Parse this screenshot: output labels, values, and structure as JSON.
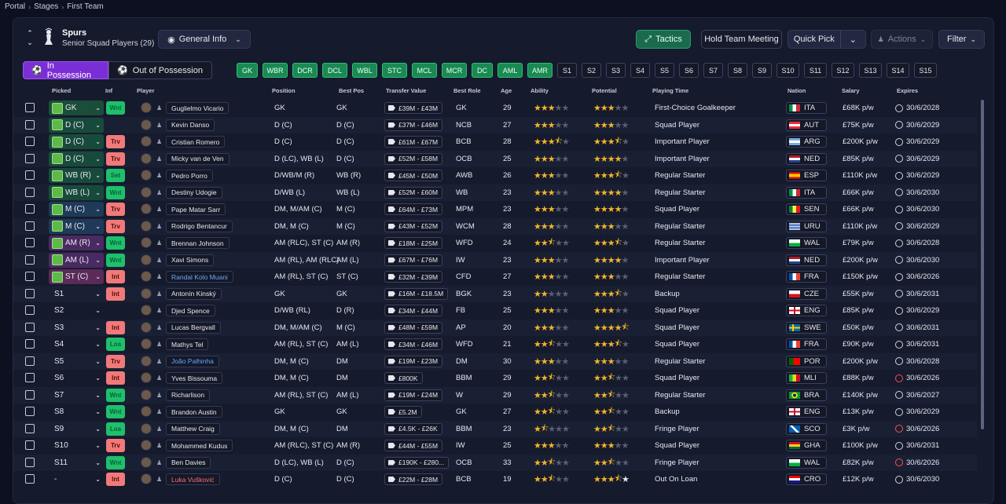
{
  "breadcrumb": [
    "Portal",
    "Stages",
    "First Team"
  ],
  "club": {
    "name": "Spurs",
    "subtitle": "Senior Squad Players (29)"
  },
  "view_select": "General Info",
  "toolbar": {
    "tactics": "Tactics",
    "hold_meeting": "Hold Team Meeting",
    "quick_pick": "Quick Pick",
    "actions": "Actions",
    "filter": "Filter"
  },
  "tabs": {
    "in_possession": "In Possession",
    "out_of_possession": "Out of Possession"
  },
  "chips": [
    "GK",
    "WBR",
    "DCR",
    "DCL",
    "WBL",
    "STC",
    "MCL",
    "MCR",
    "DC",
    "AML",
    "AMR",
    "S1",
    "S2",
    "S3",
    "S4",
    "S5",
    "S6",
    "S7",
    "S8",
    "S9",
    "S10",
    "S11",
    "S12",
    "S13",
    "S14",
    "S15"
  ],
  "chip_filled_count": 11,
  "headers": {
    "picked": "Picked",
    "inf": "Inf",
    "player": "Player",
    "position": "Position",
    "best_pos": "Best Pos",
    "transfer_value": "Transfer Value",
    "best_role": "Best Role",
    "age": "Age",
    "ability": "Ability",
    "potential": "Potential",
    "playing_time": "Playing Time",
    "nation": "Nation",
    "salary": "Salary",
    "expires": "Expires"
  },
  "colors": {
    "accent_purple": "#7c2ed6",
    "tactics_green": "#1a6b4e",
    "happy": "#1fbf6c",
    "unhappy": "#f07a7a",
    "star": "#f2b52a"
  },
  "players": [
    {
      "picked": "GK",
      "pk": "gk",
      "inf": "Wnt",
      "name": "Guglielmo Vicario",
      "pos": "GK",
      "best_pos": "GK",
      "tv": "£39M - £43M",
      "role": "GK",
      "age": "29",
      "ability": 3,
      "potential": 3,
      "pt": "First-Choice Goalkeeper",
      "nat": "ITA",
      "flag": "ita",
      "sal": "£68K p/w",
      "exp": "30/6/2028",
      "exp_red": false
    },
    {
      "picked": "D (C)",
      "pk": "def",
      "inf": "",
      "name": "Kevin Danso",
      "pos": "D (C)",
      "best_pos": "D (C)",
      "tv": "£37M - £46M",
      "role": "NCB",
      "age": "27",
      "ability": 3,
      "potential": 3,
      "pt": "Squad Player",
      "nat": "AUT",
      "flag": "aut",
      "sal": "£75K p/w",
      "exp": "30/6/2029",
      "exp_red": false
    },
    {
      "picked": "D (C)",
      "pk": "def",
      "inf": "Trv",
      "name": "Cristian Romero",
      "pos": "D (C)",
      "best_pos": "D (C)",
      "tv": "£61M - £67M",
      "role": "BCB",
      "age": "28",
      "ability": 3.5,
      "potential": 3.5,
      "pt": "Important Player",
      "nat": "ARG",
      "flag": "arg",
      "sal": "£200K p/w",
      "exp": "30/6/2029",
      "exp_red": false
    },
    {
      "picked": "D (C)",
      "pk": "def",
      "inf": "Trv",
      "name": "Micky van de Ven",
      "pos": "D (LC), WB (L)",
      "best_pos": "D (C)",
      "tv": "£52M - £58M",
      "role": "OCB",
      "age": "25",
      "ability": 3,
      "potential": 4,
      "pt": "Important Player",
      "nat": "NED",
      "flag": "ned",
      "sal": "£85K p/w",
      "exp": "30/6/2029",
      "exp_red": false
    },
    {
      "picked": "WB (R)",
      "pk": "def",
      "inf": "Set",
      "name": "Pedro Porro",
      "pos": "D/WB/M (R)",
      "best_pos": "WB (R)",
      "tv": "£45M - £50M",
      "role": "AWB",
      "age": "26",
      "ability": 3,
      "potential": 3.5,
      "pt": "Regular Starter",
      "nat": "ESP",
      "flag": "esp",
      "sal": "£110K p/w",
      "exp": "30/6/2029",
      "exp_red": false
    },
    {
      "picked": "WB (L)",
      "pk": "def",
      "inf": "Wnt",
      "name": "Destiny Udogie",
      "pos": "D/WB (L)",
      "best_pos": "WB (L)",
      "tv": "£52M - £60M",
      "role": "WB",
      "age": "23",
      "ability": 3,
      "potential": 4,
      "pt": "Regular Starter",
      "nat": "ITA",
      "flag": "ita",
      "sal": "£66K p/w",
      "exp": "30/6/2030",
      "exp_red": false
    },
    {
      "picked": "M (C)",
      "pk": "mid",
      "inf": "Trv",
      "name": "Pape Matar Sarr",
      "pos": "DM, M/AM (C)",
      "best_pos": "M (C)",
      "tv": "£64M - £73M",
      "role": "MPM",
      "age": "23",
      "ability": 3,
      "potential": 4,
      "pt": "Squad Player",
      "nat": "SEN",
      "flag": "sen",
      "sal": "£66K p/w",
      "exp": "30/6/2030",
      "exp_red": false
    },
    {
      "picked": "M (C)",
      "pk": "mid",
      "inf": "Trv",
      "name": "Rodrigo Bentancur",
      "pos": "DM, M (C)",
      "best_pos": "M (C)",
      "tv": "£43M - £52M",
      "role": "WCM",
      "age": "28",
      "ability": 3,
      "potential": 3,
      "pt": "Regular Starter",
      "nat": "URU",
      "flag": "uru",
      "sal": "£110K p/w",
      "exp": "30/6/2029",
      "exp_red": false
    },
    {
      "picked": "AM (R)",
      "pk": "am",
      "inf": "Wnt",
      "name": "Brennan Johnson",
      "pos": "AM (RLC), ST (C)",
      "best_pos": "AM (R)",
      "tv": "£18M - £25M",
      "role": "WFD",
      "age": "24",
      "ability": 2.5,
      "potential": 3.5,
      "pt": "Regular Starter",
      "nat": "WAL",
      "flag": "wal",
      "sal": "£79K p/w",
      "exp": "30/6/2028",
      "exp_red": false
    },
    {
      "picked": "AM (L)",
      "pk": "am",
      "inf": "Wnt",
      "name": "Xavi Simons",
      "pos": "AM (RL), AM (RLC)",
      "best_pos": "AM (L)",
      "tv": "£67M - £76M",
      "role": "IW",
      "age": "23",
      "ability": 3,
      "potential": 4,
      "pt": "Important Player",
      "nat": "NED",
      "flag": "ned",
      "sal": "£200K p/w",
      "exp": "30/6/2030",
      "exp_red": false
    },
    {
      "picked": "ST (C)",
      "pk": "st",
      "inf": "Int",
      "name": "Randal Kolo Muani",
      "name_color": "blue",
      "pos": "AM (RL), ST (C)",
      "best_pos": "ST (C)",
      "tv": "£32M - £39M",
      "role": "CFD",
      "age": "27",
      "ability": 3,
      "potential": 3,
      "pt": "Regular Starter",
      "nat": "FRA",
      "flag": "fra",
      "sal": "£150K p/w",
      "exp": "30/6/2026",
      "exp_red": false
    },
    {
      "picked": "S1",
      "pk": "sub",
      "inf": "Int",
      "name": "Antonín Kinský",
      "pos": "GK",
      "best_pos": "GK",
      "tv": "£16M - £18.5M",
      "role": "BGK",
      "age": "23",
      "ability": 2,
      "potential": 3.5,
      "pt": "Backup",
      "nat": "CZE",
      "flag": "cze",
      "sal": "£55K p/w",
      "exp": "30/6/2031",
      "exp_red": false
    },
    {
      "picked": "S2",
      "pk": "sub",
      "inf": "",
      "name": "Djed Spence",
      "pos": "D/WB (RL)",
      "best_pos": "D (R)",
      "tv": "£34M - £44M",
      "role": "FB",
      "age": "25",
      "ability": 3,
      "potential": 3,
      "pt": "Squad Player",
      "nat": "ENG",
      "flag": "eng",
      "sal": "£85K p/w",
      "exp": "30/6/2029",
      "exp_red": false
    },
    {
      "picked": "S3",
      "pk": "sub",
      "inf": "Int",
      "name": "Lucas Bergvall",
      "pos": "DM, M/AM (C)",
      "best_pos": "M (C)",
      "tv": "£48M - £59M",
      "role": "AP",
      "age": "20",
      "ability": 3,
      "potential": 4.5,
      "pt": "Squad Player",
      "nat": "SWE",
      "flag": "swe",
      "sal": "£50K p/w",
      "exp": "30/6/2031",
      "exp_red": false
    },
    {
      "picked": "S4",
      "pk": "sub",
      "inf": "Loa",
      "name": "Mathys Tel",
      "pos": "AM (RL), ST (C)",
      "best_pos": "AM (L)",
      "tv": "£34M - £46M",
      "role": "WFD",
      "age": "21",
      "ability": 2.5,
      "potential": 3.5,
      "pt": "Squad Player",
      "nat": "FRA",
      "flag": "fra",
      "sal": "£90K p/w",
      "exp": "30/6/2031",
      "exp_red": false
    },
    {
      "picked": "S5",
      "pk": "sub",
      "inf": "Trv",
      "name": "João Palhinha",
      "name_color": "blue",
      "pos": "DM, M (C)",
      "best_pos": "DM",
      "tv": "£19M - £23M",
      "role": "DM",
      "age": "30",
      "ability": 3,
      "potential": 3,
      "pt": "Regular Starter",
      "nat": "POR",
      "flag": "por",
      "sal": "£200K p/w",
      "exp": "30/6/2028",
      "exp_red": false
    },
    {
      "picked": "S6",
      "pk": "sub",
      "inf": "Int",
      "name": "Yves Bissouma",
      "pos": "DM, M (C)",
      "best_pos": "DM",
      "tv": "£800K",
      "role": "BBM",
      "age": "29",
      "ability": 2.5,
      "potential": 2.5,
      "pt": "Squad Player",
      "nat": "MLI",
      "flag": "mli",
      "sal": "£88K p/w",
      "exp": "30/6/2026",
      "exp_red": true
    },
    {
      "picked": "S7",
      "pk": "sub",
      "inf": "Wnt",
      "name": "Richarlison",
      "pos": "AM (RL), ST (C)",
      "best_pos": "AM (L)",
      "tv": "£19M - £24M",
      "role": "W",
      "age": "29",
      "ability": 2.5,
      "potential": 2.5,
      "pt": "Regular Starter",
      "nat": "BRA",
      "flag": "bra",
      "sal": "£140K p/w",
      "exp": "30/6/2027",
      "exp_red": false
    },
    {
      "picked": "S8",
      "pk": "sub",
      "inf": "Wnt",
      "name": "Brandon Austin",
      "pos": "GK",
      "best_pos": "GK",
      "tv": "£5.2M",
      "role": "GK",
      "age": "27",
      "ability": 2.5,
      "potential": 2.5,
      "pt": "Backup",
      "nat": "ENG",
      "flag": "eng",
      "sal": "£13K p/w",
      "exp": "30/6/2029",
      "exp_red": false
    },
    {
      "picked": "S9",
      "pk": "sub",
      "inf": "Loa",
      "name": "Matthew Craig",
      "pos": "DM, M (C)",
      "best_pos": "DM",
      "tv": "£4.5K - £26K",
      "role": "BBM",
      "age": "23",
      "ability": 1.5,
      "potential": 2.5,
      "pt": "Fringe Player",
      "nat": "SCO",
      "flag": "sco",
      "sal": "£3K p/w",
      "exp": "30/6/2026",
      "exp_red": true
    },
    {
      "picked": "S10",
      "pk": "sub",
      "inf": "Trv",
      "name": "Mohammed Kudus",
      "pos": "AM (RLC), ST (C)",
      "best_pos": "AM (R)",
      "tv": "£44M - £55M",
      "role": "IW",
      "age": "25",
      "ability": 3,
      "potential": 3,
      "pt": "Squad Player",
      "nat": "GHA",
      "flag": "gha",
      "sal": "£100K p/w",
      "exp": "30/6/2031",
      "exp_red": false
    },
    {
      "picked": "S11",
      "pk": "sub",
      "inf": "Wnt",
      "name": "Ben Davies",
      "pos": "D (LC), WB (L)",
      "best_pos": "D (C)",
      "tv": "£190K - £280...",
      "role": "OCB",
      "age": "33",
      "ability": 2.5,
      "potential": 2.5,
      "pt": "Fringe Player",
      "nat": "WAL",
      "flag": "wal",
      "sal": "£82K p/w",
      "exp": "30/6/2026",
      "exp_red": true
    },
    {
      "picked": "-",
      "pk": "none",
      "inf": "Int",
      "name": "Luka Vušković",
      "name_color": "red",
      "pos": "D (C)",
      "best_pos": "D (C)",
      "tv": "£22M - £28M",
      "role": "BCB",
      "age": "19",
      "ability": 2.5,
      "potential": 3.5,
      "star_white": true,
      "pt": "Out On Loan",
      "nat": "CRO",
      "flag": "cro",
      "sal": "£12K p/w",
      "exp": "30/6/2030",
      "exp_red": false
    }
  ]
}
